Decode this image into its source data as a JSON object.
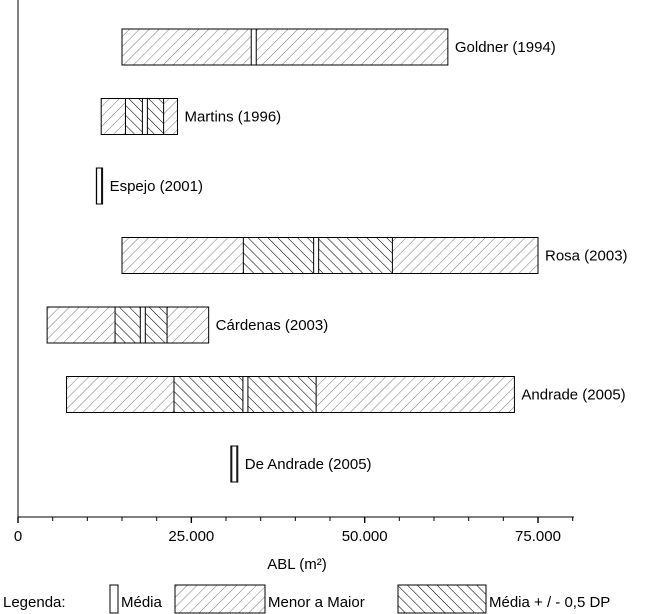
{
  "chart_data": {
    "type": "bar",
    "subtype": "floating-range",
    "xlabel": "ABL (m²)",
    "xlim": [
      0,
      80000
    ],
    "x_ticks": [
      0,
      25000,
      50000,
      75000
    ],
    "x_tick_labels": [
      "0",
      "25.000",
      "50.000",
      "75.000"
    ],
    "grid": false,
    "legend_position": "bottom",
    "legend": {
      "title": "Legenda:",
      "entries": [
        {
          "key": "media",
          "label": "Média"
        },
        {
          "key": "range",
          "label": "Menor a Maior"
        },
        {
          "key": "sd",
          "label": "Média + / - 0,5 DP"
        }
      ]
    },
    "categories": [
      "Goldner (1994)",
      "Martins (1996)",
      "Espejo (2001)",
      "Rosa (2003)",
      "Cárdenas (2003)",
      "Andrade (2005)",
      "De Andrade (2005)"
    ],
    "series": [
      {
        "category": "Goldner (1994)",
        "min": 15000,
        "max": 62000,
        "mean": 34000,
        "sd_low": null,
        "sd_high": null
      },
      {
        "category": "Martins (1996)",
        "min": 12000,
        "max": 23000,
        "mean": 18300,
        "sd_low": 15500,
        "sd_high": 21000
      },
      {
        "category": "Espejo (2001)",
        "min": 11300,
        "max": 12200,
        "mean": 11700,
        "sd_low": null,
        "sd_high": null
      },
      {
        "category": "Rosa (2003)",
        "min": 15000,
        "max": 75000,
        "mean": 43000,
        "sd_low": 32500,
        "sd_high": 54000
      },
      {
        "category": "Cárdenas (2003)",
        "min": 4200,
        "max": 27500,
        "mean": 18000,
        "sd_low": 14000,
        "sd_high": 21500
      },
      {
        "category": "Andrade (2005)",
        "min": 7000,
        "max": 71600,
        "mean": 32800,
        "sd_low": 22500,
        "sd_high": 43000
      },
      {
        "category": "De Andrade (2005)",
        "min": 30700,
        "max": 31700,
        "mean": 31200,
        "sd_low": null,
        "sd_high": null
      }
    ]
  }
}
